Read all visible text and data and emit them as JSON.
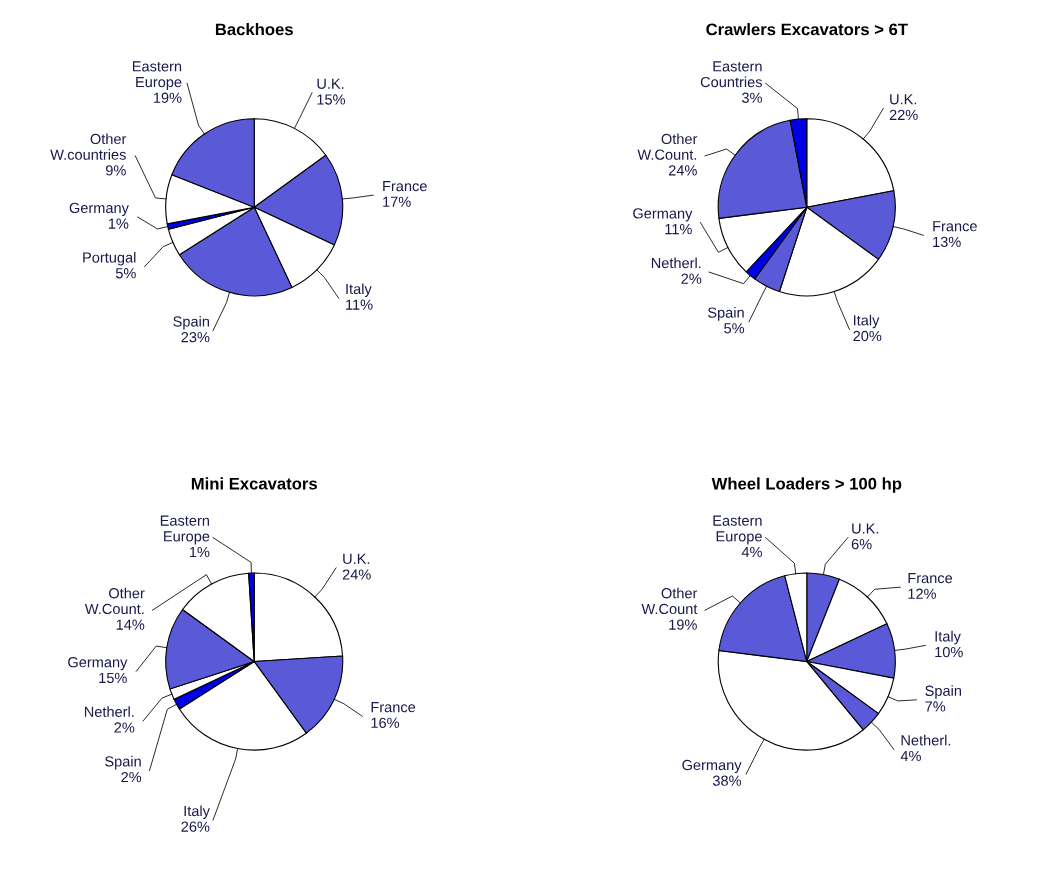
{
  "chart_data": [
    {
      "type": "pie",
      "title": "Backhoes",
      "categories": [
        "U.K.",
        "France",
        "Italy",
        "Spain",
        "Portugal",
        "Germany",
        "Other\nW.countries",
        "Eastern\nEurope"
      ],
      "values": [
        15,
        17,
        11,
        23,
        5,
        1,
        9,
        19
      ],
      "value_labels": [
        "15%",
        "17%",
        "11%",
        "23%",
        "5%",
        "1%",
        "9%",
        "19%"
      ],
      "colors": [
        "#ffffff",
        "#5a5ad8",
        "#ffffff",
        "#5a5ad8",
        "#ffffff",
        "#0000e6",
        "#ffffff",
        "#5a5ad8"
      ],
      "legend": false
    },
    {
      "type": "pie",
      "title": "Crawlers Excavators > 6T",
      "categories": [
        "U.K.",
        "France",
        "Italy",
        "Spain",
        "Netherl.",
        "Germany",
        "Other\nW.Count.",
        "Eastern\nCountries"
      ],
      "values": [
        22,
        13,
        20,
        5,
        2,
        11,
        24,
        3
      ],
      "value_labels": [
        "22%",
        "13%",
        "20%",
        "5%",
        "2%",
        "11%",
        "24%",
        "3%"
      ],
      "colors": [
        "#ffffff",
        "#5a5ad8",
        "#ffffff",
        "#5a5ad8",
        "#0000e6",
        "#ffffff",
        "#5a5ad8",
        "#0000e6"
      ],
      "legend": false
    },
    {
      "type": "pie",
      "title": "Mini Excavators",
      "categories": [
        "U.K.",
        "France",
        "Italy",
        "Spain",
        "Netherl.",
        "Germany",
        "Other\nW.Count.",
        "Eastern\nEurope"
      ],
      "values": [
        24,
        16,
        26,
        2,
        2,
        15,
        14,
        1
      ],
      "value_labels": [
        "24%",
        "16%",
        "26%",
        "2%",
        "2%",
        "15%",
        "14%",
        "1%"
      ],
      "colors": [
        "#ffffff",
        "#5a5ad8",
        "#ffffff",
        "#0000e6",
        "#ffffff",
        "#5a5ad8",
        "#ffffff",
        "#0000e6"
      ],
      "legend": false
    },
    {
      "type": "pie",
      "title": "Wheel Loaders > 100 hp",
      "categories": [
        "U.K.",
        "France",
        "Italy",
        "Spain",
        "Netherl.",
        "Germany",
        "Other\nW.Count",
        "Eastern\nEurope"
      ],
      "values": [
        6,
        12,
        10,
        7,
        4,
        38,
        19,
        4
      ],
      "value_labels": [
        "6%",
        "12%",
        "10%",
        "7%",
        "4%",
        "38%",
        "19%",
        "4%"
      ],
      "colors": [
        "#5a5ad8",
        "#ffffff",
        "#5a5ad8",
        "#ffffff",
        "#5a5ad8",
        "#ffffff",
        "#5a5ad8",
        "#ffffff"
      ],
      "legend": false
    }
  ]
}
